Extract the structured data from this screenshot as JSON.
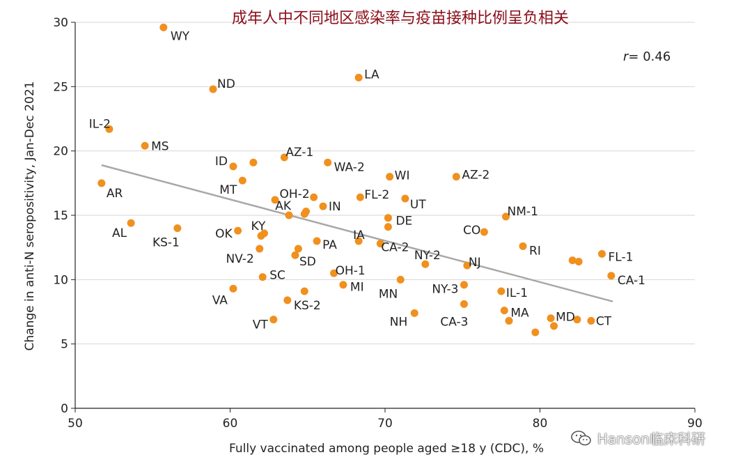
{
  "chart_data": {
    "type": "scatter",
    "title": "成年人中不同地区感染率与疫苗接种比例呈负相关",
    "xlabel": "Fully vaccinated among people aged ≥18 y (CDC), %",
    "ylabel": "Change in anti-N seropositivity, Jan-Dec 2021",
    "xlim": [
      50,
      90
    ],
    "ylim": [
      0,
      30
    ],
    "xticks": [
      50,
      60,
      70,
      80,
      90
    ],
    "yticks": [
      0,
      5,
      10,
      15,
      20,
      25,
      30
    ],
    "grid": "horizontal",
    "point_color": "#f0901e",
    "trendline_color": "#a8a8a8",
    "annotation": "= 0.46",
    "annotation_symbol": "r",
    "trendline": {
      "x": [
        51.7,
        84.7
      ],
      "y": [
        18.9,
        8.3
      ]
    },
    "points": [
      {
        "label": "WY",
        "x": 55.7,
        "y": 29.6
      },
      {
        "label": "ND",
        "x": 58.9,
        "y": 24.8
      },
      {
        "label": "LA",
        "x": 68.3,
        "y": 25.7
      },
      {
        "label": "IL-2",
        "x": 52.2,
        "y": 21.7
      },
      {
        "label": "MS",
        "x": 54.5,
        "y": 20.4
      },
      {
        "label": "AZ-1",
        "x": 63.5,
        "y": 19.5
      },
      {
        "label": "ID",
        "x": 60.2,
        "y": 18.8
      },
      {
        "label": "",
        "x": 61.5,
        "y": 19.1
      },
      {
        "label": "WA-2",
        "x": 66.3,
        "y": 19.1
      },
      {
        "label": "WI",
        "x": 70.3,
        "y": 18.0
      },
      {
        "label": "AZ-2",
        "x": 74.6,
        "y": 18.0
      },
      {
        "label": "AR",
        "x": 51.7,
        "y": 17.5
      },
      {
        "label": "MT",
        "x": 60.8,
        "y": 17.7
      },
      {
        "label": "OH-2",
        "x": 65.4,
        "y": 16.4
      },
      {
        "label": "",
        "x": 62.9,
        "y": 16.2
      },
      {
        "label": "FL-2",
        "x": 68.4,
        "y": 16.4
      },
      {
        "label": "UT",
        "x": 71.3,
        "y": 16.3
      },
      {
        "label": "AK",
        "x": 63.8,
        "y": 15.0
      },
      {
        "label": "",
        "x": 64.9,
        "y": 15.3
      },
      {
        "label": "",
        "x": 64.8,
        "y": 15.1
      },
      {
        "label": "IN",
        "x": 66.0,
        "y": 15.7
      },
      {
        "label": "DE",
        "x": 70.2,
        "y": 14.8
      },
      {
        "label": "NM-1",
        "x": 77.8,
        "y": 14.9
      },
      {
        "label": "AL",
        "x": 53.6,
        "y": 14.4
      },
      {
        "label": "KS-1",
        "x": 56.6,
        "y": 14.0
      },
      {
        "label": "KY",
        "x": 62.2,
        "y": 13.6
      },
      {
        "label": "OK",
        "x": 60.5,
        "y": 13.8
      },
      {
        "label": "",
        "x": 62.0,
        "y": 13.4
      },
      {
        "label": "",
        "x": 70.2,
        "y": 14.1
      },
      {
        "label": "CO",
        "x": 76.4,
        "y": 13.7
      },
      {
        "label": "PA",
        "x": 65.6,
        "y": 13.0
      },
      {
        "label": "IA",
        "x": 68.3,
        "y": 13.0
      },
      {
        "label": "CA-2",
        "x": 69.7,
        "y": 12.8
      },
      {
        "label": "RI",
        "x": 78.9,
        "y": 12.6
      },
      {
        "label": "NV-2",
        "x": 61.9,
        "y": 12.4
      },
      {
        "label": "",
        "x": 64.4,
        "y": 12.4
      },
      {
        "label": "SD",
        "x": 64.2,
        "y": 11.9
      },
      {
        "label": "NY-2",
        "x": 72.6,
        "y": 11.2
      },
      {
        "label": "NJ",
        "x": 75.3,
        "y": 11.1
      },
      {
        "label": "FL-1",
        "x": 84.0,
        "y": 12.0
      },
      {
        "label": "",
        "x": 82.1,
        "y": 11.5
      },
      {
        "label": "",
        "x": 82.5,
        "y": 11.4
      },
      {
        "label": "OH-1",
        "x": 66.7,
        "y": 10.5
      },
      {
        "label": "SC",
        "x": 62.1,
        "y": 10.2
      },
      {
        "label": "CA-1",
        "x": 84.6,
        "y": 10.3
      },
      {
        "label": "MI",
        "x": 67.3,
        "y": 9.6
      },
      {
        "label": "MN",
        "x": 71.0,
        "y": 10.0
      },
      {
        "label": "NY-3",
        "x": 75.1,
        "y": 9.6
      },
      {
        "label": "IL-1",
        "x": 77.5,
        "y": 9.1
      },
      {
        "label": "VA",
        "x": 60.2,
        "y": 9.3
      },
      {
        "label": "",
        "x": 64.8,
        "y": 9.1
      },
      {
        "label": "KS-2",
        "x": 63.7,
        "y": 8.4
      },
      {
        "label": "CA-3",
        "x": 75.1,
        "y": 8.1
      },
      {
        "label": "MA",
        "x": 77.7,
        "y": 7.6
      },
      {
        "label": "NH",
        "x": 71.9,
        "y": 7.4
      },
      {
        "label": "VT",
        "x": 62.8,
        "y": 6.9
      },
      {
        "label": "",
        "x": 78.0,
        "y": 6.8
      },
      {
        "label": "MD",
        "x": 80.7,
        "y": 7.0
      },
      {
        "label": "",
        "x": 80.9,
        "y": 6.4
      },
      {
        "label": "",
        "x": 82.4,
        "y": 6.9
      },
      {
        "label": "CT",
        "x": 83.3,
        "y": 6.8
      },
      {
        "label": "",
        "x": 79.7,
        "y": 5.9
      }
    ]
  },
  "watermark": {
    "text": "Hanson临床科研",
    "icon": "wechat-icon"
  }
}
